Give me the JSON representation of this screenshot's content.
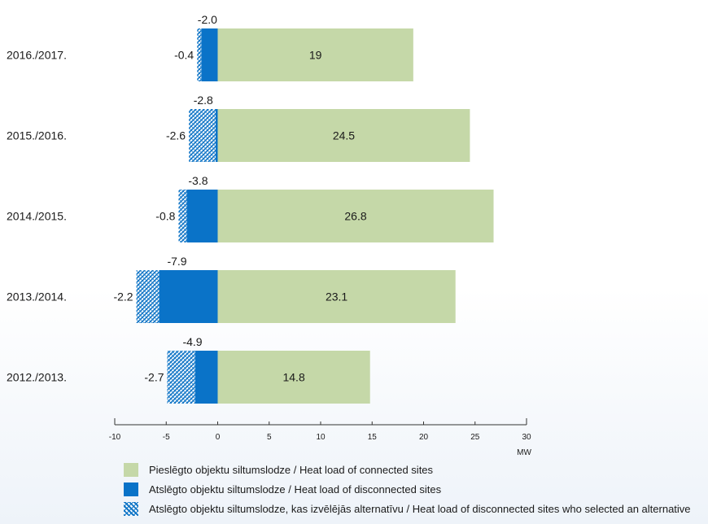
{
  "colors": {
    "connected": "#c5d8a8",
    "disconnected": "#0a73c8",
    "alternative": "#1477c7",
    "axis": "#333333"
  },
  "chart_data": {
    "type": "bar",
    "orientation": "horizontal",
    "stacked": true,
    "categories": [
      "2016./2017.",
      "2015./2016.",
      "2014./2015.",
      "2013./2014.",
      "2012./2013."
    ],
    "series": [
      {
        "name": "Pieslēgto objektu siltumslodze / Heat load of connected sites",
        "values": [
          19,
          24.5,
          26.8,
          23.1,
          14.8
        ]
      },
      {
        "name": "Atslēgto objektu siltumslodze / Heat load of disconnected sites",
        "values": [
          -1.6,
          -0.2,
          -3.0,
          -5.7,
          -2.2
        ]
      },
      {
        "name": "Atslēgto objektu siltumslodze, kas izvēlējās alternatīvu / Heat load of disconnected sites who selected an alternative",
        "values": [
          -0.4,
          -2.6,
          -0.8,
          -2.2,
          -2.7
        ]
      }
    ],
    "value_labels": [
      "19",
      "24.5",
      "26.8",
      "23.1",
      "14.8"
    ],
    "alternative_labels": [
      "-0.4",
      "-2.6",
      "-0.8",
      "-2.2",
      "-2.7"
    ],
    "total_negative_labels": [
      "-2.0",
      "-2.8",
      "-3.8",
      "-7.9",
      "-4.9"
    ],
    "xlim": [
      -10,
      30
    ],
    "xticks": [
      "-10",
      "-5",
      "0",
      "5",
      "10",
      "15",
      "20",
      "25",
      "30"
    ],
    "xlabel": "MW",
    "title": "",
    "grid": false,
    "legend_position": "bottom"
  },
  "legend": {
    "connected": "Pieslēgto objektu siltumslodze / Heat load of connected sites",
    "disconnected": "Atslēgto objektu siltumslodze / Heat load of disconnected sites",
    "alternative": "Atslēgto objektu siltumslodze, kas izvēlējās alternatīvu / Heat load of disconnected sites who selected an alternative"
  }
}
